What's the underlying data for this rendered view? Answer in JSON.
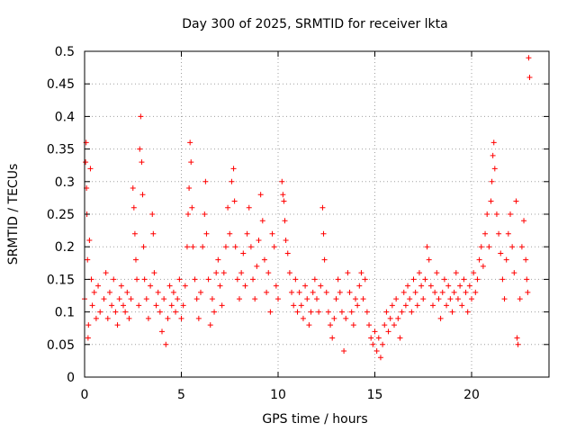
{
  "chart_data": {
    "type": "scatter",
    "title": "Day 300 of 2025, SRMTID for receiver lkta",
    "xlabel": "GPS time / hours",
    "ylabel": "SRMTID / TECUs",
    "xlim": [
      0,
      24
    ],
    "ylim": [
      0,
      0.5
    ],
    "xticks": [
      0,
      5,
      10,
      15,
      20
    ],
    "xtick_labels": [
      "0",
      "5",
      "10",
      "15",
      "20"
    ],
    "yticks": [
      0,
      0.05,
      0.1,
      0.15,
      0.2,
      0.25,
      0.3,
      0.35,
      0.4,
      0.45,
      0.5
    ],
    "ytick_labels": [
      "0",
      "0.05",
      "0.1",
      "0.15",
      "0.2",
      "0.25",
      "0.3",
      "0.35",
      "0.4",
      "0.45",
      "0.5"
    ],
    "grid": true,
    "marker": "+",
    "color": "#ff0000",
    "series": [
      {
        "name": "SRMTID",
        "points": [
          [
            0.0,
            0.12
          ],
          [
            0.05,
            0.33
          ],
          [
            0.08,
            0.36
          ],
          [
            0.1,
            0.29
          ],
          [
            0.12,
            0.25
          ],
          [
            0.15,
            0.18
          ],
          [
            0.18,
            0.06
          ],
          [
            0.2,
            0.08
          ],
          [
            0.25,
            0.21
          ],
          [
            0.3,
            0.32
          ],
          [
            0.35,
            0.15
          ],
          [
            0.4,
            0.11
          ],
          [
            0.5,
            0.13
          ],
          [
            0.6,
            0.09
          ],
          [
            0.7,
            0.14
          ],
          [
            0.8,
            0.1
          ],
          [
            1.0,
            0.12
          ],
          [
            1.1,
            0.16
          ],
          [
            1.2,
            0.09
          ],
          [
            1.3,
            0.13
          ],
          [
            1.4,
            0.11
          ],
          [
            1.5,
            0.15
          ],
          [
            1.6,
            0.1
          ],
          [
            1.7,
            0.08
          ],
          [
            1.8,
            0.12
          ],
          [
            1.9,
            0.14
          ],
          [
            2.0,
            0.11
          ],
          [
            2.1,
            0.1
          ],
          [
            2.2,
            0.13
          ],
          [
            2.3,
            0.09
          ],
          [
            2.4,
            0.12
          ],
          [
            2.5,
            0.29
          ],
          [
            2.55,
            0.26
          ],
          [
            2.6,
            0.22
          ],
          [
            2.65,
            0.18
          ],
          [
            2.7,
            0.15
          ],
          [
            2.8,
            0.11
          ],
          [
            2.85,
            0.35
          ],
          [
            2.9,
            0.4
          ],
          [
            2.95,
            0.33
          ],
          [
            3.0,
            0.28
          ],
          [
            3.05,
            0.2
          ],
          [
            3.1,
            0.15
          ],
          [
            3.2,
            0.12
          ],
          [
            3.3,
            0.09
          ],
          [
            3.4,
            0.14
          ],
          [
            3.5,
            0.25
          ],
          [
            3.55,
            0.22
          ],
          [
            3.6,
            0.16
          ],
          [
            3.7,
            0.11
          ],
          [
            3.8,
            0.13
          ],
          [
            3.9,
            0.1
          ],
          [
            4.0,
            0.07
          ],
          [
            4.1,
            0.12
          ],
          [
            4.2,
            0.05
          ],
          [
            4.3,
            0.09
          ],
          [
            4.4,
            0.14
          ],
          [
            4.5,
            0.11
          ],
          [
            4.6,
            0.13
          ],
          [
            4.7,
            0.1
          ],
          [
            4.8,
            0.12
          ],
          [
            4.9,
            0.15
          ],
          [
            5.0,
            0.09
          ],
          [
            5.1,
            0.11
          ],
          [
            5.2,
            0.14
          ],
          [
            5.3,
            0.2
          ],
          [
            5.35,
            0.25
          ],
          [
            5.4,
            0.29
          ],
          [
            5.45,
            0.36
          ],
          [
            5.5,
            0.33
          ],
          [
            5.55,
            0.26
          ],
          [
            5.6,
            0.2
          ],
          [
            5.7,
            0.15
          ],
          [
            5.8,
            0.12
          ],
          [
            5.9,
            0.09
          ],
          [
            6.0,
            0.13
          ],
          [
            6.1,
            0.2
          ],
          [
            6.2,
            0.25
          ],
          [
            6.25,
            0.3
          ],
          [
            6.3,
            0.22
          ],
          [
            6.4,
            0.15
          ],
          [
            6.5,
            0.08
          ],
          [
            6.6,
            0.12
          ],
          [
            6.7,
            0.1
          ],
          [
            6.8,
            0.16
          ],
          [
            6.9,
            0.18
          ],
          [
            7.0,
            0.14
          ],
          [
            7.1,
            0.11
          ],
          [
            7.2,
            0.16
          ],
          [
            7.3,
            0.2
          ],
          [
            7.4,
            0.26
          ],
          [
            7.5,
            0.22
          ],
          [
            7.6,
            0.3
          ],
          [
            7.7,
            0.32
          ],
          [
            7.75,
            0.27
          ],
          [
            7.8,
            0.2
          ],
          [
            7.9,
            0.15
          ],
          [
            8.0,
            0.12
          ],
          [
            8.1,
            0.16
          ],
          [
            8.2,
            0.19
          ],
          [
            8.3,
            0.14
          ],
          [
            8.4,
            0.22
          ],
          [
            8.5,
            0.26
          ],
          [
            8.6,
            0.2
          ],
          [
            8.7,
            0.15
          ],
          [
            8.8,
            0.12
          ],
          [
            8.9,
            0.17
          ],
          [
            9.0,
            0.21
          ],
          [
            9.1,
            0.28
          ],
          [
            9.2,
            0.24
          ],
          [
            9.3,
            0.18
          ],
          [
            9.4,
            0.13
          ],
          [
            9.5,
            0.16
          ],
          [
            9.6,
            0.1
          ],
          [
            9.7,
            0.22
          ],
          [
            9.8,
            0.2
          ],
          [
            9.9,
            0.14
          ],
          [
            10.0,
            0.12
          ],
          [
            10.2,
            0.3
          ],
          [
            10.25,
            0.28
          ],
          [
            10.3,
            0.27
          ],
          [
            10.35,
            0.24
          ],
          [
            10.4,
            0.21
          ],
          [
            10.5,
            0.19
          ],
          [
            10.6,
            0.16
          ],
          [
            10.7,
            0.13
          ],
          [
            10.8,
            0.11
          ],
          [
            10.9,
            0.15
          ],
          [
            11.0,
            0.1
          ],
          [
            11.1,
            0.13
          ],
          [
            11.2,
            0.11
          ],
          [
            11.3,
            0.09
          ],
          [
            11.4,
            0.14
          ],
          [
            11.5,
            0.12
          ],
          [
            11.6,
            0.08
          ],
          [
            11.7,
            0.1
          ],
          [
            11.8,
            0.13
          ],
          [
            11.9,
            0.15
          ],
          [
            12.0,
            0.12
          ],
          [
            12.1,
            0.1
          ],
          [
            12.2,
            0.14
          ],
          [
            12.3,
            0.26
          ],
          [
            12.35,
            0.22
          ],
          [
            12.4,
            0.18
          ],
          [
            12.5,
            0.13
          ],
          [
            12.6,
            0.1
          ],
          [
            12.7,
            0.08
          ],
          [
            12.8,
            0.06
          ],
          [
            12.9,
            0.09
          ],
          [
            13.0,
            0.12
          ],
          [
            13.1,
            0.15
          ],
          [
            13.2,
            0.13
          ],
          [
            13.3,
            0.1
          ],
          [
            13.4,
            0.04
          ],
          [
            13.5,
            0.09
          ],
          [
            13.6,
            0.16
          ],
          [
            13.7,
            0.13
          ],
          [
            13.8,
            0.1
          ],
          [
            13.9,
            0.08
          ],
          [
            14.0,
            0.12
          ],
          [
            14.1,
            0.11
          ],
          [
            14.2,
            0.14
          ],
          [
            14.3,
            0.16
          ],
          [
            14.4,
            0.12
          ],
          [
            14.5,
            0.15
          ],
          [
            14.6,
            0.1
          ],
          [
            14.7,
            0.08
          ],
          [
            14.8,
            0.06
          ],
          [
            14.9,
            0.05
          ],
          [
            15.0,
            0.07
          ],
          [
            15.1,
            0.04
          ],
          [
            15.2,
            0.06
          ],
          [
            15.3,
            0.03
          ],
          [
            15.4,
            0.05
          ],
          [
            15.5,
            0.08
          ],
          [
            15.6,
            0.1
          ],
          [
            15.7,
            0.07
          ],
          [
            15.8,
            0.09
          ],
          [
            15.9,
            0.11
          ],
          [
            16.0,
            0.08
          ],
          [
            16.1,
            0.12
          ],
          [
            16.2,
            0.09
          ],
          [
            16.3,
            0.06
          ],
          [
            16.4,
            0.1
          ],
          [
            16.5,
            0.13
          ],
          [
            16.6,
            0.11
          ],
          [
            16.7,
            0.14
          ],
          [
            16.8,
            0.12
          ],
          [
            16.9,
            0.1
          ],
          [
            17.0,
            0.15
          ],
          [
            17.1,
            0.13
          ],
          [
            17.2,
            0.11
          ],
          [
            17.3,
            0.16
          ],
          [
            17.4,
            0.14
          ],
          [
            17.5,
            0.12
          ],
          [
            17.6,
            0.15
          ],
          [
            17.7,
            0.2
          ],
          [
            17.8,
            0.18
          ],
          [
            17.9,
            0.14
          ],
          [
            18.0,
            0.11
          ],
          [
            18.1,
            0.13
          ],
          [
            18.2,
            0.16
          ],
          [
            18.3,
            0.12
          ],
          [
            18.4,
            0.09
          ],
          [
            18.5,
            0.13
          ],
          [
            18.6,
            0.15
          ],
          [
            18.7,
            0.11
          ],
          [
            18.8,
            0.14
          ],
          [
            18.9,
            0.12
          ],
          [
            19.0,
            0.1
          ],
          [
            19.1,
            0.13
          ],
          [
            19.2,
            0.16
          ],
          [
            19.3,
            0.12
          ],
          [
            19.4,
            0.14
          ],
          [
            19.5,
            0.11
          ],
          [
            19.6,
            0.15
          ],
          [
            19.7,
            0.13
          ],
          [
            19.8,
            0.1
          ],
          [
            19.9,
            0.14
          ],
          [
            20.0,
            0.12
          ],
          [
            20.1,
            0.16
          ],
          [
            20.2,
            0.13
          ],
          [
            20.3,
            0.15
          ],
          [
            20.4,
            0.18
          ],
          [
            20.5,
            0.2
          ],
          [
            20.6,
            0.17
          ],
          [
            20.7,
            0.22
          ],
          [
            20.8,
            0.25
          ],
          [
            20.9,
            0.2
          ],
          [
            21.0,
            0.27
          ],
          [
            21.05,
            0.3
          ],
          [
            21.1,
            0.34
          ],
          [
            21.15,
            0.36
          ],
          [
            21.2,
            0.32
          ],
          [
            21.3,
            0.25
          ],
          [
            21.4,
            0.22
          ],
          [
            21.5,
            0.19
          ],
          [
            21.6,
            0.15
          ],
          [
            21.7,
            0.12
          ],
          [
            21.8,
            0.18
          ],
          [
            21.9,
            0.22
          ],
          [
            22.0,
            0.25
          ],
          [
            22.1,
            0.2
          ],
          [
            22.2,
            0.16
          ],
          [
            22.3,
            0.27
          ],
          [
            22.35,
            0.06
          ],
          [
            22.4,
            0.05
          ],
          [
            22.5,
            0.12
          ],
          [
            22.6,
            0.2
          ],
          [
            22.7,
            0.24
          ],
          [
            22.8,
            0.18
          ],
          [
            22.85,
            0.15
          ],
          [
            22.9,
            0.13
          ],
          [
            22.95,
            0.49
          ],
          [
            23.0,
            0.46
          ]
        ]
      }
    ]
  }
}
